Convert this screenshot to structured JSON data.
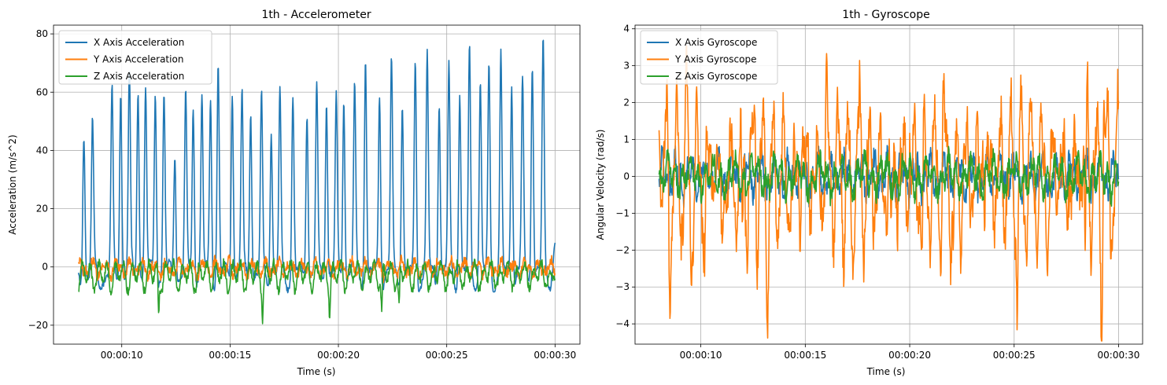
{
  "chart_data": [
    {
      "type": "line",
      "title": "1th - Accelerometer",
      "xlabel": "Time (s)",
      "ylabel": "Acceleration (m/s^2)",
      "x_tick_labels": [
        "00:00:10",
        "00:00:15",
        "00:00:20",
        "00:00:25",
        "00:00:30"
      ],
      "x_tick_values": [
        10,
        15,
        20,
        25,
        30
      ],
      "y_ticks": [
        -20,
        0,
        20,
        40,
        60,
        80
      ],
      "xlim": [
        6.85,
        31.15
      ],
      "ylim": [
        -26.5,
        83
      ],
      "x_data_range": [
        8.0,
        30.0
      ],
      "grid": true,
      "legend_position": "upper-left",
      "series": [
        {
          "name": "X Axis Acceleration",
          "color": "#1f77b4",
          "peak_times": [
            8.25,
            8.65,
            9.55,
            9.95,
            10.35,
            10.75,
            11.1,
            11.55,
            11.95,
            12.45,
            12.95,
            13.3,
            13.7,
            14.1,
            14.45,
            15.1,
            15.55,
            15.95,
            16.45,
            16.9,
            17.3,
            17.9,
            18.55,
            19.0,
            19.45,
            19.9,
            20.25,
            20.75,
            21.25,
            21.9,
            22.45,
            22.95,
            23.55,
            24.1,
            24.65,
            25.1,
            25.6,
            26.05,
            26.55,
            26.95,
            27.5,
            28.0,
            28.5,
            28.95,
            29.45
          ],
          "peak_values": [
            48,
            48,
            58,
            63,
            66,
            64,
            62,
            62,
            59,
            42,
            58,
            58,
            58,
            58,
            69,
            64,
            58,
            57,
            57,
            49,
            58,
            58,
            57,
            61,
            61,
            57,
            61,
            61,
            74,
            61,
            70,
            58,
            70,
            72,
            60,
            67,
            60,
            74,
            61,
            68,
            71,
            66,
            63,
            74,
            77
          ],
          "baseline": [
            -12,
            5
          ],
          "end_value": 8
        },
        {
          "name": "Y Axis Acceleration",
          "color": "#ff7f0e",
          "range": [
            -10,
            8
          ]
        },
        {
          "name": "Z Axis Acceleration",
          "color": "#2ca02c",
          "range": [
            -21,
            5
          ],
          "dip_times": [
            11.7,
            16.5,
            19.6,
            22.0,
            22.8
          ],
          "dip_values": [
            -21,
            -19.5,
            -18.5,
            -19.5,
            -18.5
          ]
        }
      ]
    },
    {
      "type": "line",
      "title": "1th - Gyroscope",
      "xlabel": "Time (s)",
      "ylabel": "Angular Velocity (rad/s)",
      "x_tick_labels": [
        "00:00:10",
        "00:00:15",
        "00:00:20",
        "00:00:25",
        "00:00:30"
      ],
      "x_tick_values": [
        10,
        15,
        20,
        25,
        30
      ],
      "y_ticks": [
        -4,
        -3,
        -2,
        -1,
        0,
        1,
        2,
        3,
        4
      ],
      "xlim": [
        6.85,
        31.15
      ],
      "ylim": [
        -4.55,
        4.1
      ],
      "x_data_range": [
        8.0,
        30.0
      ],
      "grid": true,
      "legend_position": "upper-left",
      "series": [
        {
          "name": "X Axis Gyroscope",
          "color": "#1f77b4",
          "range": [
            -1.5,
            1.0
          ]
        },
        {
          "name": "Y Axis Gyroscope",
          "color": "#ff7f0e",
          "range": [
            -4.2,
            3.7
          ],
          "start_value": 1.25,
          "min_times": [
            8.5,
            9.55,
            10.2,
            11.0,
            12.0,
            13.2,
            14.4,
            17.2,
            19.1,
            20.6,
            22.1,
            24.2,
            25.15,
            26.7,
            28.4,
            29.2
          ],
          "min_values": [
            -3.0,
            -3.1,
            -2.9,
            -3.4,
            -3.15,
            -3.0,
            -2.95,
            -3.3,
            -3.3,
            -3.0,
            -4.2,
            -3.4,
            -3.75,
            -3.0,
            -3.9,
            -4.15
          ],
          "max_times": [
            9.3,
            10.6,
            12.6,
            14.85,
            16.0,
            17.6,
            20.0,
            21.6,
            23.5,
            24.2,
            25.7,
            27.1,
            28.2,
            28.5,
            29.3
          ],
          "max_values": [
            2.1,
            2.4,
            2.35,
            2.05,
            2.95,
            2.2,
            2.3,
            2.5,
            2.65,
            2.65,
            2.3,
            2.45,
            2.5,
            2.9,
            3.7
          ]
        },
        {
          "name": "Z Axis Gyroscope",
          "color": "#2ca02c",
          "range": [
            -1.5,
            1.5
          ]
        }
      ]
    }
  ]
}
